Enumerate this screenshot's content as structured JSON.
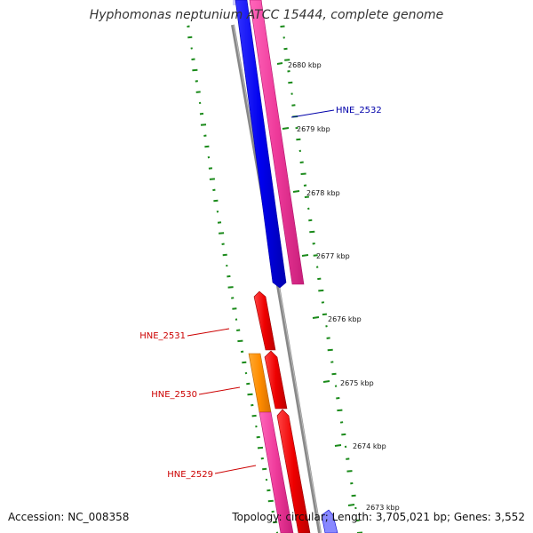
{
  "title": "Hyphomonas neptunium ATCC 15444, complete genome",
  "footer": {
    "accession": "Accession: NC_008358",
    "summary": "Topology: circular; Length: 3,705,021 bp; Genes: 3,552"
  },
  "ticks": [
    {
      "label": "2680 kbp"
    },
    {
      "label": "2679 kbp"
    },
    {
      "label": "2678 kbp"
    },
    {
      "label": "2677 kbp"
    },
    {
      "label": "2676 kbp"
    },
    {
      "label": "2675 kbp"
    },
    {
      "label": "2674 kbp"
    },
    {
      "label": "2673 kbp"
    }
  ],
  "genes": [
    {
      "label": "HNE_2532",
      "color": "#0000aa"
    },
    {
      "label": "HNE_2531",
      "color": "#cc0000"
    },
    {
      "label": "HNE_2530",
      "color": "#cc0000"
    },
    {
      "label": "HNE_2529",
      "color": "#cc0000"
    }
  ],
  "colors": {
    "backbone": "#888888",
    "dots": "#1a8a1a",
    "blue_gene": "#0000ee",
    "pink_gene": "#ee3a9a",
    "red_gene": "#ee0000",
    "orange_gene": "#ff8c00"
  }
}
